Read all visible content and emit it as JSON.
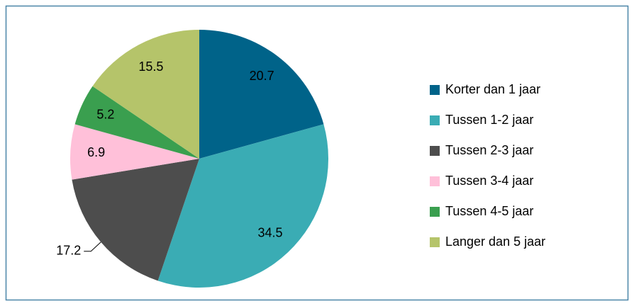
{
  "chart_data": {
    "type": "pie",
    "categories": [
      "Korter dan 1 jaar",
      "Tussen 1-2 jaar",
      "Tussen 2-3 jaar",
      "Tussen 3-4 jaar",
      "Tussen 4-5 jaar",
      "Langer dan 5 jaar"
    ],
    "values": [
      20.7,
      34.5,
      17.2,
      6.9,
      5.2,
      15.5
    ],
    "colors": [
      "#006389",
      "#3aacb4",
      "#4d4d4d",
      "#ffc0d9",
      "#3a9f4f",
      "#b5c46a"
    ],
    "legend": "right"
  }
}
